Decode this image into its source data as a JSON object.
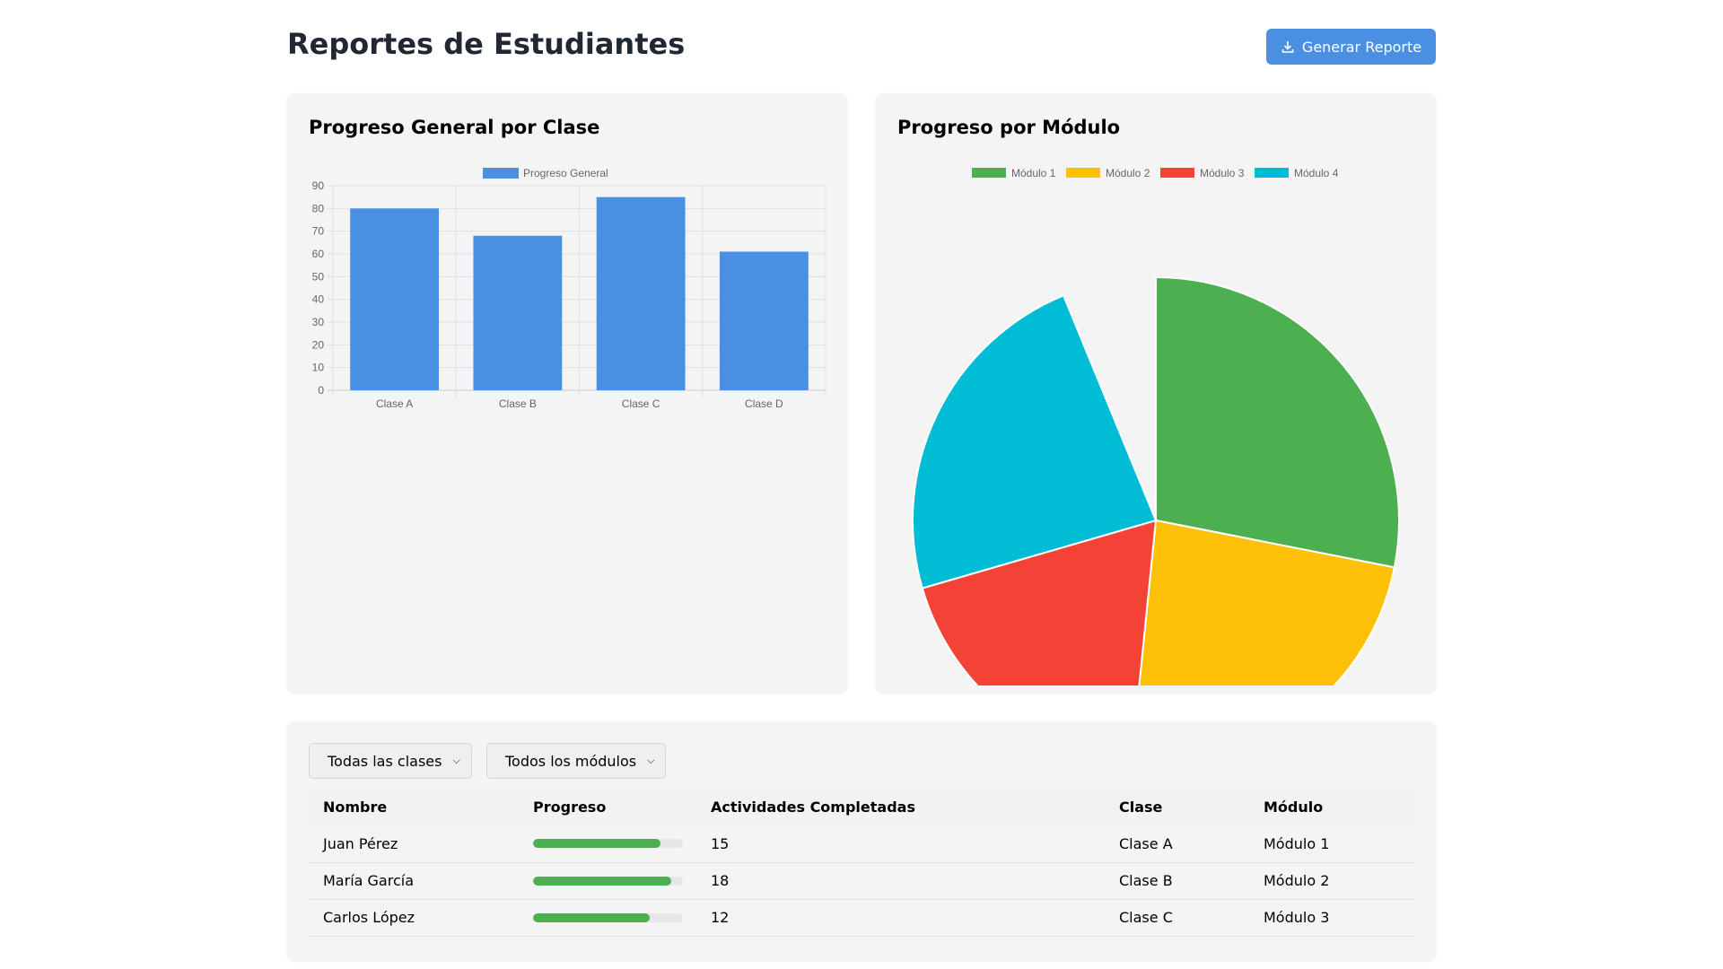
{
  "header": {
    "title": "Reportes de Estudiantes",
    "generate_label": "Generar Reporte",
    "generate_icon": "download-icon"
  },
  "colors": {
    "accent": "#4a90e2",
    "progress": "#4caf50"
  },
  "chart_data": [
    {
      "type": "bar",
      "title": "Progreso General por Clase",
      "legend": [
        "Progreso General"
      ],
      "categories": [
        "Clase A",
        "Clase B",
        "Clase C",
        "Clase D"
      ],
      "series": [
        {
          "name": "Progreso General",
          "values": [
            80,
            68,
            85,
            61
          ],
          "color": "#4a90e2"
        }
      ],
      "ylim": [
        0,
        90
      ],
      "yticks": [
        "0",
        "10",
        "20",
        "30",
        "40",
        "50",
        "60",
        "70",
        "80",
        "90"
      ],
      "grid": true,
      "legend_position": "top"
    },
    {
      "type": "pie",
      "title": "Progreso por Módulo",
      "labels": [
        "Módulo 1",
        "Módulo 2",
        "Módulo 3",
        "Módulo 4"
      ],
      "values": [
        28.1,
        23.5,
        18.9,
        23.3
      ],
      "unfilled_remainder": 6.2,
      "colors": [
        "#4caf50",
        "#ffc107",
        "#f44336",
        "#00bcd4"
      ],
      "legend_position": "top"
    }
  ],
  "filters": {
    "class": "Todas las clases",
    "module": "Todos los módulos"
  },
  "table": {
    "headers": [
      "Nombre",
      "Progreso",
      "Actividades Completadas",
      "Clase",
      "Módulo"
    ],
    "rows": [
      {
        "name": "Juan Pérez",
        "progress": 85,
        "activities": "15",
        "class": "Clase A",
        "module": "Módulo 1"
      },
      {
        "name": "María García",
        "progress": 92,
        "activities": "18",
        "class": "Clase B",
        "module": "Módulo 2"
      },
      {
        "name": "Carlos López",
        "progress": 78,
        "activities": "12",
        "class": "Clase C",
        "module": "Módulo 3"
      }
    ]
  }
}
